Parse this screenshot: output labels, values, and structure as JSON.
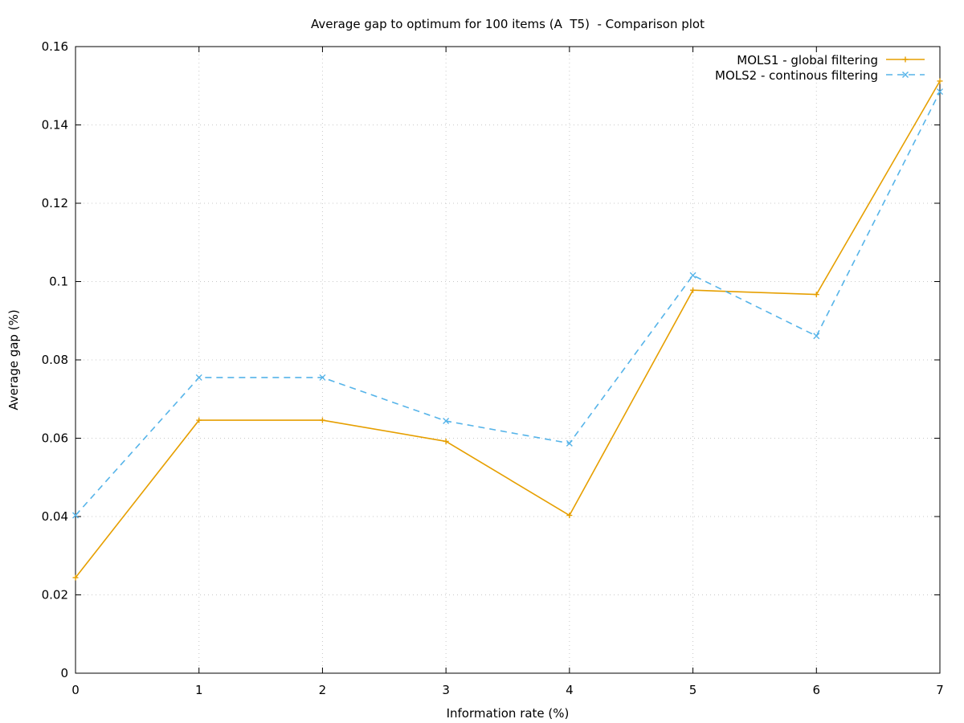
{
  "chart_data": {
    "type": "line",
    "title": "Average gap to optimum for 100 items (A  T5)  - Comparison plot",
    "xlabel": "Information rate (%)",
    "ylabel": "Average gap (%)",
    "xlim": [
      0,
      7
    ],
    "ylim": [
      0,
      0.16
    ],
    "xticks": [
      0,
      1,
      2,
      3,
      4,
      5,
      6,
      7
    ],
    "yticks": [
      0,
      0.02,
      0.04,
      0.06,
      0.08,
      0.1,
      0.12,
      0.14,
      0.16
    ],
    "xtick_labels": [
      "0",
      "1",
      "2",
      "3",
      "4",
      "5",
      "6",
      "7"
    ],
    "ytick_labels": [
      "0",
      "0.02",
      "0.04",
      "0.06",
      "0.08",
      "0.1",
      "0.12",
      "0.14",
      "0.16"
    ],
    "grid": true,
    "legend_position": "top-right",
    "x": [
      0,
      1,
      2,
      3,
      4,
      5,
      6,
      7
    ],
    "series": [
      {
        "name": "MOLS1 - global filtering",
        "values": [
          0.0244,
          0.0646,
          0.0646,
          0.0592,
          0.0403,
          0.0978,
          0.0967,
          0.1512
        ],
        "color": "#e69f00",
        "dash": "solid",
        "marker": "plus"
      },
      {
        "name": "MOLS2 - continous filtering",
        "values": [
          0.0403,
          0.0755,
          0.0755,
          0.0644,
          0.0587,
          0.1016,
          0.0861,
          0.1485
        ],
        "color": "#56b4e9",
        "dash": "dashed",
        "marker": "cross"
      }
    ]
  }
}
